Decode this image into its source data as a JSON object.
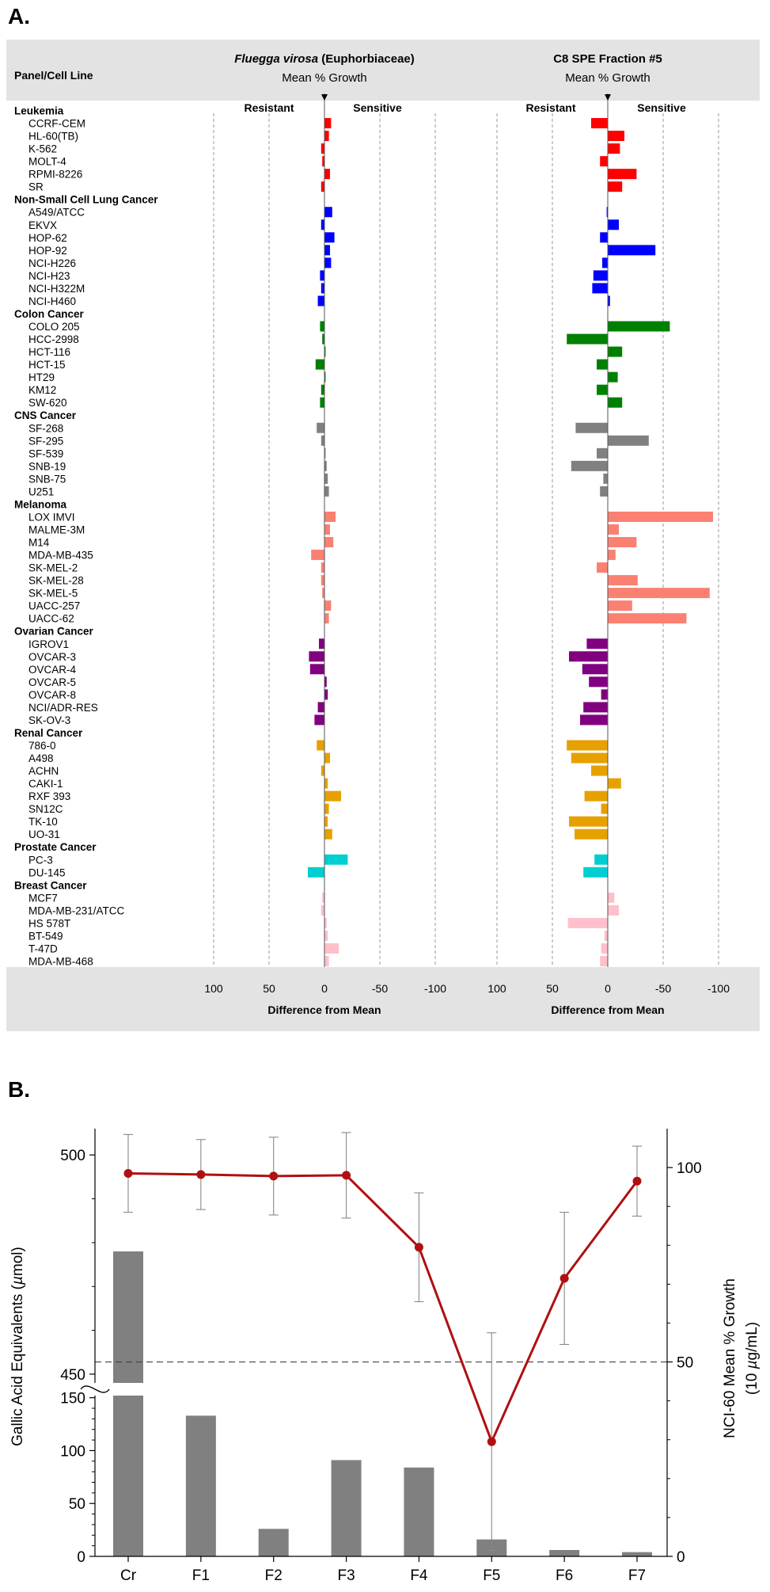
{
  "chart_data": [
    {
      "type": "bar",
      "panel_label": "A.",
      "header_left": "Panel/Cell Line",
      "charts": [
        {
          "title_italic": "Fluegga virosa",
          "title_rest": " (Euphorbiaceae)",
          "subtitle": "Mean % Growth",
          "resistant_label": "Resistant",
          "sensitive_label": "Sensitive",
          "xlabel": "Difference from Mean"
        },
        {
          "title": "C8 SPE Fraction #5",
          "subtitle": "Mean % Growth",
          "resistant_label": "Resistant",
          "sensitive_label": "Sensitive",
          "xlabel": "Difference from Mean"
        }
      ],
      "x_ticks": [
        "100",
        "50",
        "0",
        "-50",
        "-100"
      ],
      "x_range": [
        100,
        -100
      ],
      "colors": {
        "Leukemia": "#ff0000",
        "Non-Small Cell Lung Cancer": "#0000ff",
        "Colon Cancer": "#008000",
        "CNS Cancer": "#808080",
        "Melanoma": "#fa8072",
        "Ovarian Cancer": "#800080",
        "Renal Cancer": "#e6a100",
        "Prostate Cancer": "#00ced1",
        "Breast Cancer": "#ffc0cb"
      },
      "panels": [
        {
          "name": "Leukemia",
          "lines": [
            {
              "name": "CCRF-CEM",
              "a": -6,
              "b": 15
            },
            {
              "name": "HL-60(TB)",
              "a": -4,
              "b": -15
            },
            {
              "name": "K-562",
              "a": 3,
              "b": -11
            },
            {
              "name": "MOLT-4",
              "a": 2,
              "b": 7
            },
            {
              "name": "RPMI-8226",
              "a": -5,
              "b": -26
            },
            {
              "name": "SR",
              "a": 3,
              "b": -13
            }
          ]
        },
        {
          "name": "Non-Small Cell Lung Cancer",
          "lines": [
            {
              "name": "A549/ATCC",
              "a": -7,
              "b": 1
            },
            {
              "name": "EKVX",
              "a": 3,
              "b": -10
            },
            {
              "name": "HOP-62",
              "a": -9,
              "b": 7
            },
            {
              "name": "HOP-92",
              "a": -5,
              "b": -43
            },
            {
              "name": "NCI-H226",
              "a": -6,
              "b": 5
            },
            {
              "name": "NCI-H23",
              "a": 4,
              "b": 13
            },
            {
              "name": "NCI-H322M",
              "a": 3,
              "b": 14
            },
            {
              "name": "NCI-H460",
              "a": 6,
              "b": -2
            }
          ]
        },
        {
          "name": "Colon Cancer",
          "lines": [
            {
              "name": "COLO 205",
              "a": 4,
              "b": -56
            },
            {
              "name": "HCC-2998",
              "a": 2,
              "b": 37
            },
            {
              "name": "HCT-116",
              "a": -1,
              "b": -13
            },
            {
              "name": "HCT-15",
              "a": 8,
              "b": 10
            },
            {
              "name": "HT29",
              "a": -1,
              "b": -9
            },
            {
              "name": "KM12",
              "a": 3,
              "b": 10
            },
            {
              "name": "SW-620",
              "a": 4,
              "b": -13
            }
          ]
        },
        {
          "name": "CNS Cancer",
          "lines": [
            {
              "name": "SF-268",
              "a": 7,
              "b": 29
            },
            {
              "name": "SF-295",
              "a": 3,
              "b": -37
            },
            {
              "name": "SF-539",
              "a": -1,
              "b": 10
            },
            {
              "name": "SNB-19",
              "a": -2,
              "b": 33
            },
            {
              "name": "SNB-75",
              "a": -3,
              "b": 4
            },
            {
              "name": "U251",
              "a": -4,
              "b": 7
            }
          ]
        },
        {
          "name": "Melanoma",
          "lines": [
            {
              "name": "LOX IMVI",
              "a": -10,
              "b": -95
            },
            {
              "name": "MALME-3M",
              "a": -5,
              "b": -10
            },
            {
              "name": "M14",
              "a": -8,
              "b": -26
            },
            {
              "name": "MDA-MB-435",
              "a": 12,
              "b": -7
            },
            {
              "name": "SK-MEL-2",
              "a": 3,
              "b": 10
            },
            {
              "name": "SK-MEL-28",
              "a": 3,
              "b": -27
            },
            {
              "name": "SK-MEL-5",
              "a": 2,
              "b": -92
            },
            {
              "name": "UACC-257",
              "a": -6,
              "b": -22
            },
            {
              "name": "UACC-62",
              "a": -4,
              "b": -71
            }
          ]
        },
        {
          "name": "Ovarian Cancer",
          "lines": [
            {
              "name": "IGROV1",
              "a": 5,
              "b": 19
            },
            {
              "name": "OVCAR-3",
              "a": 14,
              "b": 35
            },
            {
              "name": "OVCAR-4",
              "a": 13,
              "b": 23
            },
            {
              "name": "OVCAR-5",
              "a": -2,
              "b": 17
            },
            {
              "name": "OVCAR-8",
              "a": -3,
              "b": 6
            },
            {
              "name": "NCI/ADR-RES",
              "a": 6,
              "b": 22
            },
            {
              "name": "SK-OV-3",
              "a": 9,
              "b": 25
            }
          ]
        },
        {
          "name": "Renal Cancer",
          "lines": [
            {
              "name": "786-0",
              "a": 7,
              "b": 37
            },
            {
              "name": "A498",
              "a": -5,
              "b": 33
            },
            {
              "name": "ACHN",
              "a": 3,
              "b": 15
            },
            {
              "name": "CAKI-1",
              "a": -3,
              "b": -12
            },
            {
              "name": "RXF 393",
              "a": -15,
              "b": 21
            },
            {
              "name": "SN12C",
              "a": -4,
              "b": 6
            },
            {
              "name": "TK-10",
              "a": -3,
              "b": 35
            },
            {
              "name": "UO-31",
              "a": -7,
              "b": 30
            }
          ]
        },
        {
          "name": "Prostate Cancer",
          "lines": [
            {
              "name": "PC-3",
              "a": -21,
              "b": 12
            },
            {
              "name": "DU-145",
              "a": 15,
              "b": 22
            }
          ]
        },
        {
          "name": "Breast Cancer",
          "lines": [
            {
              "name": "MCF7",
              "a": 2,
              "b": -6
            },
            {
              "name": "MDA-MB-231/ATCC",
              "a": 3,
              "b": -10
            },
            {
              "name": "HS 578T",
              "a": -2,
              "b": 36
            },
            {
              "name": "BT-549",
              "a": -3,
              "b": 3
            },
            {
              "name": "T-47D",
              "a": -13,
              "b": 6
            },
            {
              "name": "MDA-MB-468",
              "a": -4,
              "b": 7
            }
          ]
        }
      ]
    },
    {
      "type": "bar",
      "panel_label": "B.",
      "categories": [
        "Cr",
        "F1",
        "F2",
        "F3",
        "F4",
        "F5",
        "F6",
        "F7"
      ],
      "bars": {
        "name": "Gallic Acid Equivalents",
        "values": [
          478,
          133,
          26,
          91,
          84,
          16,
          6,
          4
        ],
        "color": "#808080"
      },
      "line": {
        "name": "NCI-60 Mean % Growth",
        "values": [
          98.5,
          98.2,
          97.8,
          98.0,
          79.5,
          29.5,
          71.5,
          96.5
        ],
        "errors": [
          10,
          9,
          10,
          11,
          14,
          28,
          17,
          9
        ],
        "color": "#b01010"
      },
      "dashed_reference": 50,
      "ylabel_left_parts": [
        "Gallic Acid Equivalents (",
        "µ",
        "mol)"
      ],
      "ylabel_right_line1": "NCI-60 Mean % Growth",
      "ylabel_right_line2_parts": [
        "(10 ",
        "µ",
        "g/mL)"
      ],
      "y_left_ticks_lower": [
        0,
        50,
        100,
        150
      ],
      "y_left_ticks_upper": [
        450,
        500
      ],
      "y_left_lower_range": [
        0,
        152
      ],
      "y_left_upper_range": [
        448,
        506
      ],
      "y_right_ticks": [
        0,
        50,
        100
      ],
      "y_right_range": [
        0,
        110
      ]
    }
  ]
}
